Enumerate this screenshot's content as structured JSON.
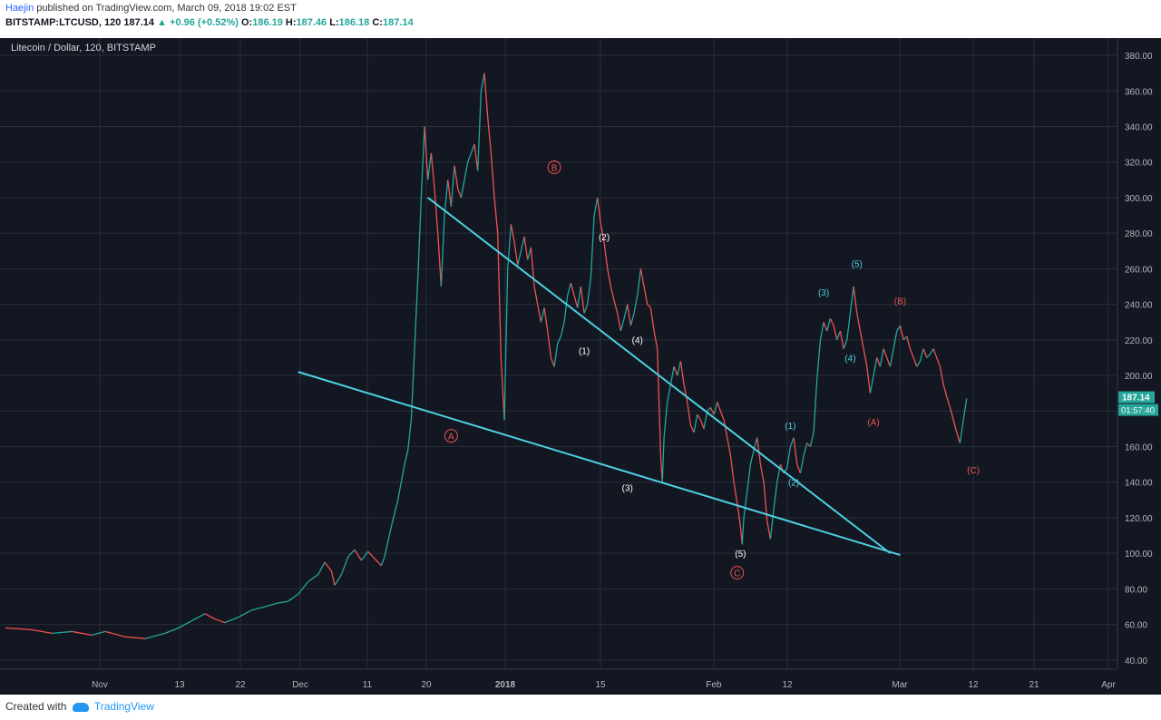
{
  "header": {
    "author": "Haejin",
    "published": "published on TradingView.com, March 09, 2018 19:02 EST",
    "symbol": "BITSTAMP:LTCUSD, 120",
    "last": "187.14",
    "change": "+0.96 (+0.52%)",
    "o_label": "O:",
    "o": "186.19",
    "h_label": "H:",
    "h": "187.46",
    "l_label": "L:",
    "l": "186.18",
    "c_label": "C:",
    "c": "187.14"
  },
  "footer": {
    "created": "Created with",
    "brand": "TradingView"
  },
  "chart_data": {
    "type": "line",
    "title": "Litecoin / Dollar, 120, BITSTAMP",
    "yticks": [
      40,
      60,
      80,
      100,
      120,
      140,
      160,
      180,
      200,
      220,
      240,
      260,
      280,
      300,
      320,
      340,
      360,
      380
    ],
    "ylim": [
      30,
      390
    ],
    "xticks": [
      "Nov",
      "13",
      "22",
      "Dec",
      "11",
      "20",
      "2018",
      "15",
      "Feb",
      "12",
      "Mar",
      "12",
      "21",
      "Apr"
    ],
    "last_price": "187.14",
    "countdown": "01:57:40",
    "series": [
      {
        "values": [
          [
            0,
            58
          ],
          [
            8,
            57
          ],
          [
            14,
            55
          ],
          [
            20,
            56
          ],
          [
            26,
            54
          ],
          [
            30,
            56
          ],
          [
            36,
            53
          ],
          [
            42,
            52
          ],
          [
            48,
            55
          ],
          [
            52,
            58
          ],
          [
            56,
            62
          ],
          [
            60,
            66
          ],
          [
            63,
            63
          ],
          [
            66,
            61
          ],
          [
            70,
            64
          ],
          [
            74,
            68
          ],
          [
            78,
            70
          ],
          [
            82,
            72
          ],
          [
            85,
            73
          ],
          [
            88,
            77
          ],
          [
            91,
            84
          ],
          [
            94,
            88
          ],
          [
            96,
            95
          ],
          [
            98,
            90
          ],
          [
            99,
            82
          ],
          [
            101,
            88
          ],
          [
            103,
            98
          ],
          [
            105,
            102
          ],
          [
            107,
            96
          ],
          [
            109,
            101
          ],
          [
            111,
            97
          ],
          [
            113,
            93
          ],
          [
            114,
            98
          ],
          [
            116,
            115
          ],
          [
            118,
            130
          ],
          [
            119,
            140
          ],
          [
            120,
            150
          ],
          [
            121,
            158
          ],
          [
            122,
            175
          ],
          [
            123,
            215
          ],
          [
            124,
            255
          ],
          [
            125,
            300
          ],
          [
            126,
            340
          ],
          [
            127,
            310
          ],
          [
            128,
            325
          ],
          [
            129,
            305
          ],
          [
            130,
            280
          ],
          [
            131,
            250
          ],
          [
            132,
            290
          ],
          [
            133,
            310
          ],
          [
            134,
            295
          ],
          [
            135,
            318
          ],
          [
            136,
            305
          ],
          [
            137,
            300
          ],
          [
            139,
            320
          ],
          [
            141,
            330
          ],
          [
            142,
            315
          ],
          [
            143,
            360
          ],
          [
            144,
            370
          ],
          [
            145,
            345
          ],
          [
            146,
            325
          ],
          [
            147,
            300
          ],
          [
            148,
            280
          ],
          [
            149,
            210
          ],
          [
            150,
            175
          ],
          [
            151,
            260
          ],
          [
            152,
            285
          ],
          [
            153,
            275
          ],
          [
            154,
            262
          ],
          [
            155,
            270
          ],
          [
            156,
            278
          ],
          [
            157,
            265
          ],
          [
            158,
            272
          ],
          [
            159,
            250
          ],
          [
            160,
            240
          ],
          [
            161,
            230
          ],
          [
            162,
            238
          ],
          [
            163,
            225
          ],
          [
            164,
            210
          ],
          [
            165,
            205
          ],
          [
            166,
            218
          ],
          [
            167,
            222
          ],
          [
            168,
            230
          ],
          [
            169,
            245
          ],
          [
            170,
            252
          ],
          [
            171,
            245
          ],
          [
            172,
            238
          ],
          [
            173,
            250
          ],
          [
            174,
            235
          ],
          [
            175,
            240
          ],
          [
            176,
            255
          ],
          [
            177,
            290
          ],
          [
            178,
            300
          ],
          [
            179,
            285
          ],
          [
            180,
            275
          ],
          [
            181,
            260
          ],
          [
            182,
            250
          ],
          [
            183,
            242
          ],
          [
            184,
            235
          ],
          [
            185,
            225
          ],
          [
            186,
            232
          ],
          [
            187,
            240
          ],
          [
            188,
            228
          ],
          [
            189,
            235
          ],
          [
            190,
            245
          ],
          [
            191,
            260
          ],
          [
            192,
            250
          ],
          [
            193,
            240
          ],
          [
            194,
            238
          ],
          [
            195,
            225
          ],
          [
            196,
            215
          ],
          [
            197,
            155
          ],
          [
            197.5,
            140
          ],
          [
            198,
            165
          ],
          [
            199,
            185
          ],
          [
            200,
            195
          ],
          [
            201,
            205
          ],
          [
            202,
            200
          ],
          [
            203,
            208
          ],
          [
            204,
            195
          ],
          [
            205,
            185
          ],
          [
            206,
            172
          ],
          [
            207,
            168
          ],
          [
            208,
            178
          ],
          [
            209,
            175
          ],
          [
            210,
            170
          ],
          [
            211,
            180
          ],
          [
            212,
            182
          ],
          [
            213,
            178
          ],
          [
            214,
            185
          ],
          [
            215,
            180
          ],
          [
            216,
            175
          ],
          [
            217,
            165
          ],
          [
            218,
            155
          ],
          [
            219,
            140
          ],
          [
            220,
            128
          ],
          [
            221,
            115
          ],
          [
            221.5,
            105
          ],
          [
            222,
            120
          ],
          [
            223,
            135
          ],
          [
            224,
            150
          ],
          [
            225,
            158
          ],
          [
            226,
            165
          ],
          [
            227,
            150
          ],
          [
            228,
            140
          ],
          [
            229,
            118
          ],
          [
            230,
            108
          ],
          [
            231,
            125
          ],
          [
            232,
            140
          ],
          [
            233,
            150
          ],
          [
            234,
            145
          ],
          [
            235,
            148
          ],
          [
            236,
            160
          ],
          [
            237,
            165
          ],
          [
            238,
            150
          ],
          [
            239,
            145
          ],
          [
            240,
            155
          ],
          [
            241,
            162
          ],
          [
            242,
            160
          ],
          [
            243,
            168
          ],
          [
            244,
            198
          ],
          [
            245,
            220
          ],
          [
            246,
            230
          ],
          [
            247,
            225
          ],
          [
            248,
            232
          ],
          [
            249,
            228
          ],
          [
            250,
            220
          ],
          [
            251,
            225
          ],
          [
            252,
            215
          ],
          [
            253,
            220
          ],
          [
            254,
            235
          ],
          [
            255,
            250
          ],
          [
            256,
            235
          ],
          [
            257,
            225
          ],
          [
            258,
            215
          ],
          [
            259,
            205
          ],
          [
            260,
            190
          ],
          [
            261,
            200
          ],
          [
            262,
            210
          ],
          [
            263,
            205
          ],
          [
            264,
            215
          ],
          [
            265,
            210
          ],
          [
            266,
            205
          ],
          [
            267,
            215
          ],
          [
            268,
            225
          ],
          [
            269,
            228
          ],
          [
            270,
            220
          ],
          [
            271,
            222
          ],
          [
            272,
            215
          ],
          [
            273,
            210
          ],
          [
            274,
            205
          ],
          [
            275,
            208
          ],
          [
            276,
            215
          ],
          [
            277,
            210
          ],
          [
            278,
            212
          ],
          [
            279,
            215
          ],
          [
            280,
            210
          ],
          [
            281,
            205
          ],
          [
            282,
            195
          ],
          [
            283,
            188
          ],
          [
            284,
            182
          ],
          [
            285,
            175
          ],
          [
            286,
            168
          ],
          [
            287,
            162
          ],
          [
            288,
            175
          ],
          [
            289,
            187
          ]
        ]
      }
    ],
    "trend_lines": [
      {
        "from": [
          127,
          300
        ],
        "to": [
          266,
          100
        ]
      },
      {
        "from": [
          88,
          202
        ],
        "to": [
          269,
          99
        ]
      }
    ],
    "wave_labels": [
      {
        "text": "A",
        "x": 134,
        "y": 164,
        "style": "circled",
        "color": "#ef5350"
      },
      {
        "text": "B",
        "x": 165,
        "y": 315,
        "style": "circled",
        "color": "#ef5350"
      },
      {
        "text": "C",
        "x": 220,
        "y": 87,
        "style": "circled",
        "color": "#ef5350"
      },
      {
        "text": "(1)",
        "x": 174,
        "y": 212,
        "color": "#ffffff"
      },
      {
        "text": "(2)",
        "x": 180,
        "y": 276,
        "color": "#ffffff"
      },
      {
        "text": "(3)",
        "x": 187,
        "y": 135,
        "color": "#ffffff"
      },
      {
        "text": "(4)",
        "x": 190,
        "y": 218,
        "color": "#ffffff"
      },
      {
        "text": "(5)",
        "x": 221,
        "y": 98,
        "color": "#ffffff"
      },
      {
        "text": "(1)",
        "x": 236,
        "y": 170,
        "color": "#4dd0e1"
      },
      {
        "text": "(2)",
        "x": 237,
        "y": 138,
        "color": "#4dd0e1"
      },
      {
        "text": "(3)",
        "x": 246,
        "y": 245,
        "color": "#4dd0e1"
      },
      {
        "text": "(4)",
        "x": 254,
        "y": 208,
        "color": "#4dd0e1"
      },
      {
        "text": "(5)",
        "x": 256,
        "y": 261,
        "color": "#4dd0e1"
      },
      {
        "text": "(A)",
        "x": 261,
        "y": 172,
        "color": "#ef5350"
      },
      {
        "text": "(B)",
        "x": 269,
        "y": 240,
        "color": "#ef5350"
      },
      {
        "text": "(C)",
        "x": 291,
        "y": 145,
        "color": "#ef5350"
      }
    ],
    "colors": {
      "background": "#131722",
      "line_up": "#26a69a",
      "line_down": "#ef5350",
      "trend": "#4dd0e1",
      "grid": "#2a2e39",
      "text": "#b2b5be"
    },
    "grid": true
  }
}
